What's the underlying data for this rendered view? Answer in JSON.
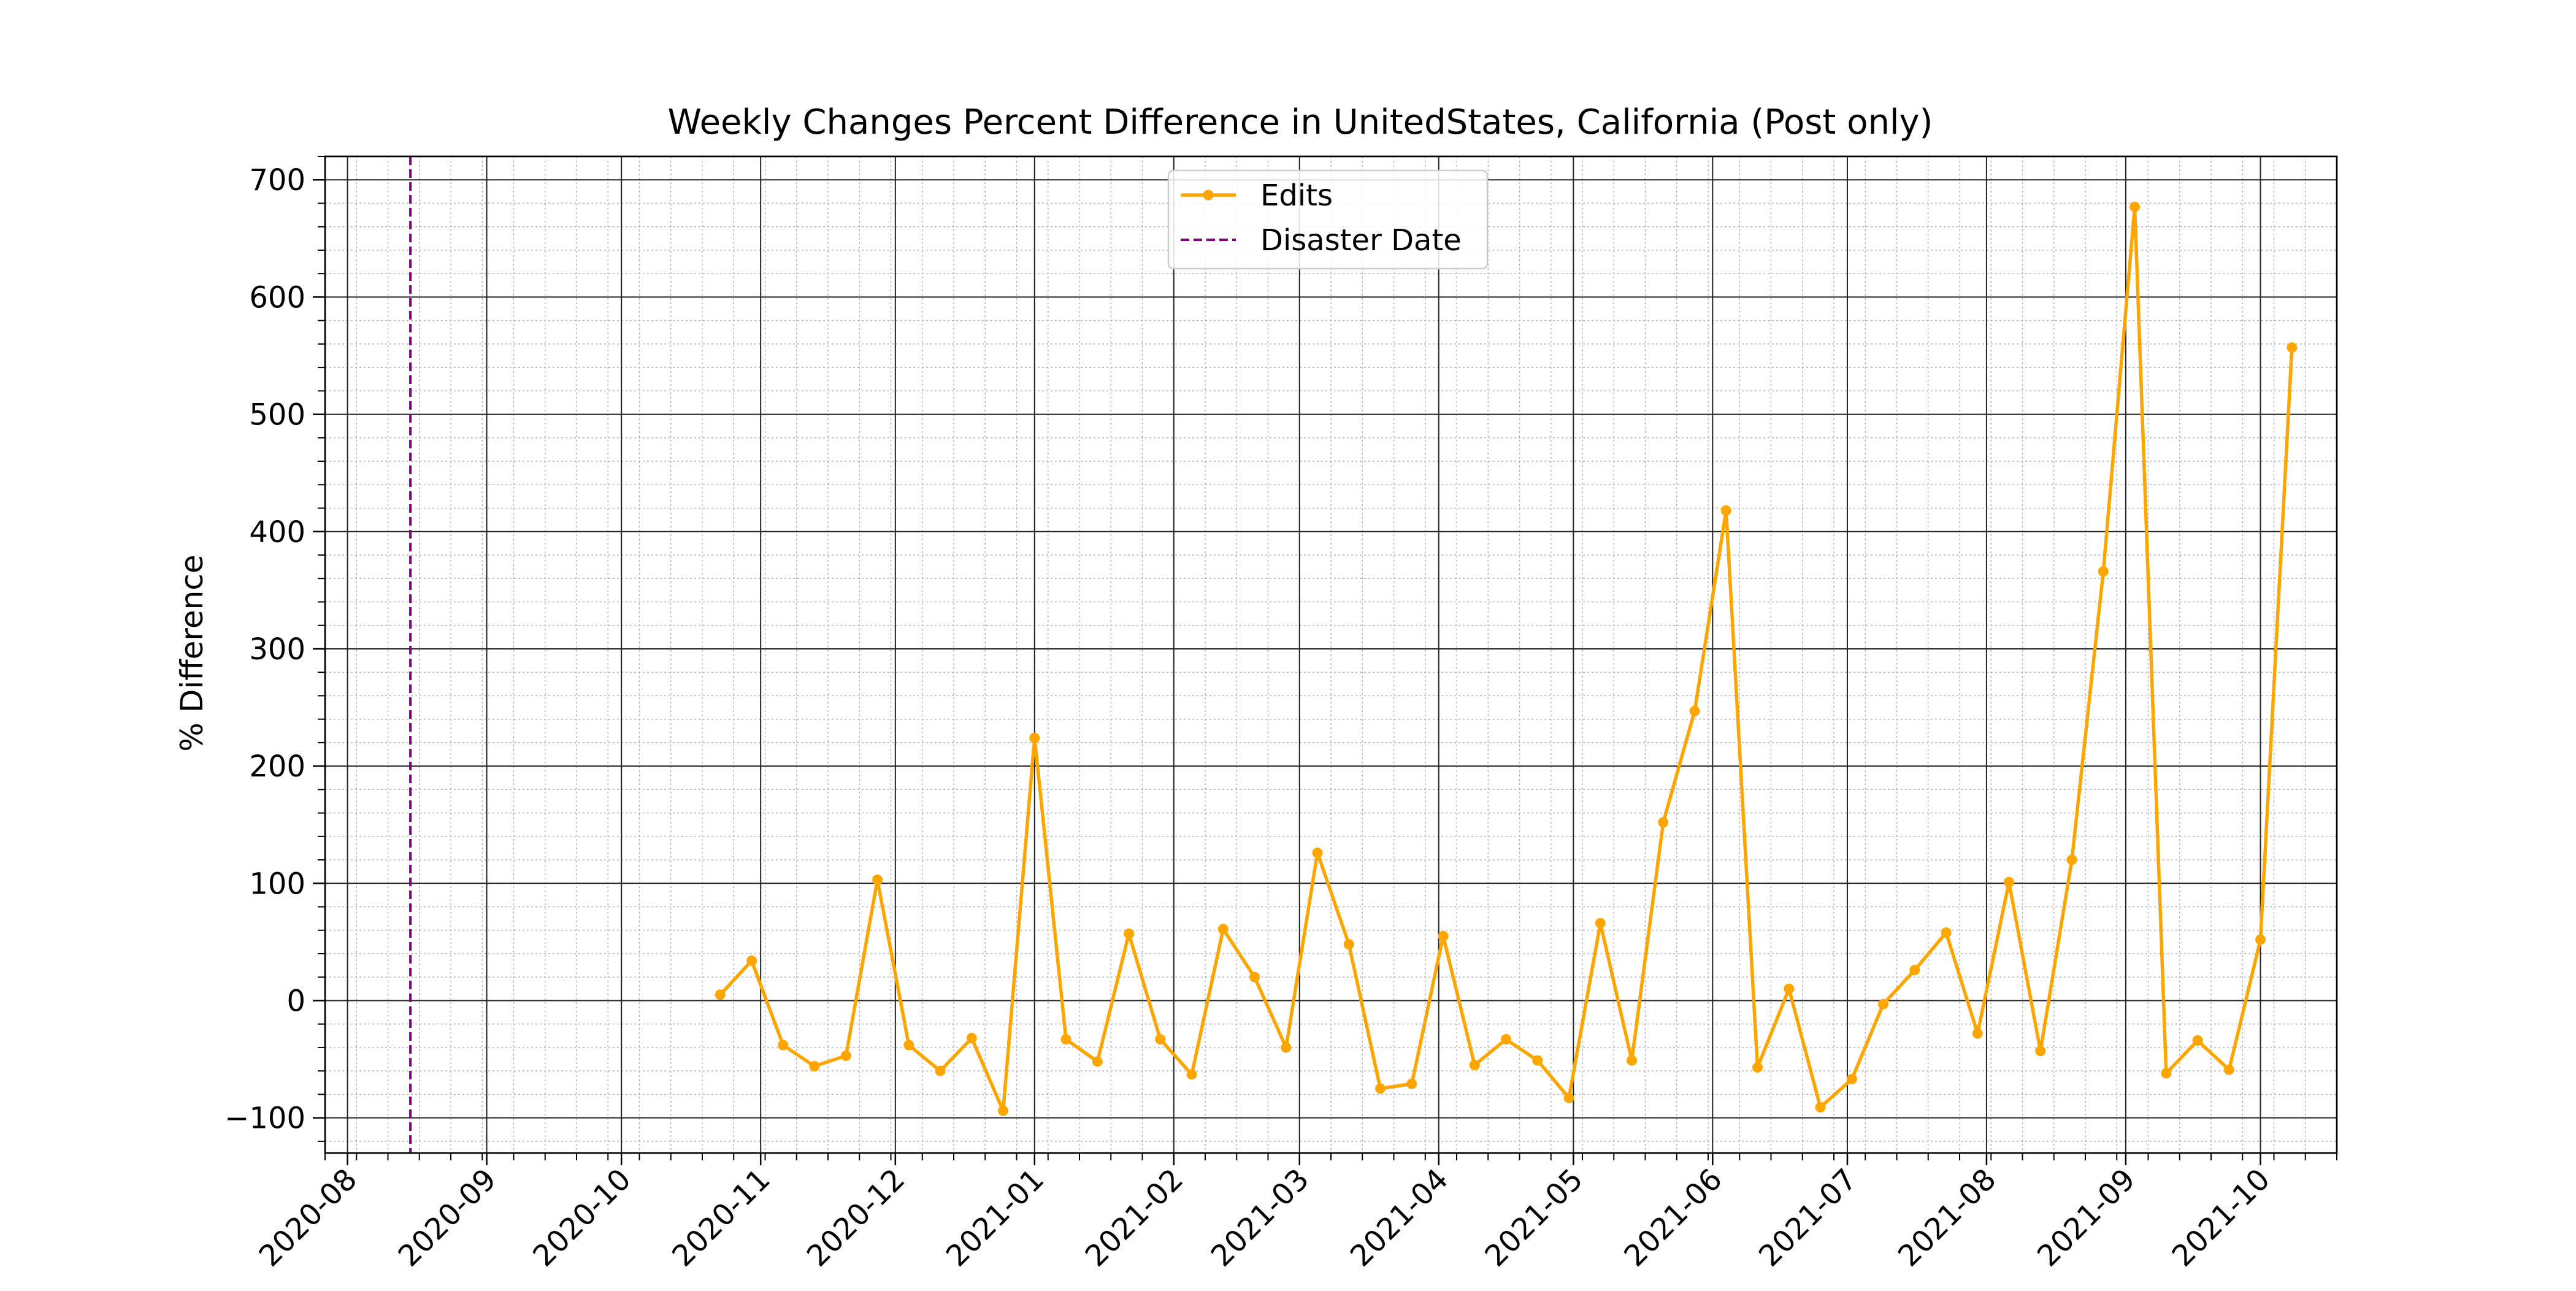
{
  "chart_data": {
    "type": "line",
    "title": "Weekly Changes Percent Difference in UnitedStates, California (Post only)",
    "xlabel": "",
    "ylabel": "% Difference",
    "x_type": "date",
    "xlim": [
      "2020-07-27",
      "2021-10-18"
    ],
    "ylim": [
      -130,
      720
    ],
    "grid": "major and minor",
    "legend_position": "top-center",
    "x_ticks": [
      {
        "date": "2020-08-01",
        "label": "2020-08"
      },
      {
        "date": "2020-09-01",
        "label": "2020-09"
      },
      {
        "date": "2020-10-01",
        "label": "2020-10"
      },
      {
        "date": "2020-11-01",
        "label": "2020-11"
      },
      {
        "date": "2020-12-01",
        "label": "2020-12"
      },
      {
        "date": "2021-01-01",
        "label": "2021-01"
      },
      {
        "date": "2021-02-01",
        "label": "2021-02"
      },
      {
        "date": "2021-03-01",
        "label": "2021-03"
      },
      {
        "date": "2021-04-01",
        "label": "2021-04"
      },
      {
        "date": "2021-05-01",
        "label": "2021-05"
      },
      {
        "date": "2021-06-01",
        "label": "2021-06"
      },
      {
        "date": "2021-07-01",
        "label": "2021-07"
      },
      {
        "date": "2021-08-01",
        "label": "2021-08"
      },
      {
        "date": "2021-09-01",
        "label": "2021-09"
      },
      {
        "date": "2021-10-01",
        "label": "2021-10"
      }
    ],
    "y_ticks": [
      {
        "value": -100,
        "label": "−100"
      },
      {
        "value": 0,
        "label": "0"
      },
      {
        "value": 100,
        "label": "100"
      },
      {
        "value": 200,
        "label": "200"
      },
      {
        "value": 300,
        "label": "300"
      },
      {
        "value": 400,
        "label": "400"
      },
      {
        "value": 500,
        "label": "500"
      },
      {
        "value": 600,
        "label": "600"
      },
      {
        "value": 700,
        "label": "700"
      }
    ],
    "series": [
      {
        "name": "Edits",
        "color": "#FFA500",
        "marker": "circle",
        "points": [
          {
            "x": "2020-10-23",
            "y": 5
          },
          {
            "x": "2020-10-30",
            "y": 34
          },
          {
            "x": "2020-11-06",
            "y": -38
          },
          {
            "x": "2020-11-13",
            "y": -56
          },
          {
            "x": "2020-11-20",
            "y": -47
          },
          {
            "x": "2020-11-27",
            "y": 103
          },
          {
            "x": "2020-12-04",
            "y": -38
          },
          {
            "x": "2020-12-11",
            "y": -60
          },
          {
            "x": "2020-12-18",
            "y": -32
          },
          {
            "x": "2020-12-25",
            "y": -94
          },
          {
            "x": "2021-01-01",
            "y": 224
          },
          {
            "x": "2021-01-08",
            "y": -33
          },
          {
            "x": "2021-01-15",
            "y": -52
          },
          {
            "x": "2021-01-22",
            "y": 57
          },
          {
            "x": "2021-01-29",
            "y": -33
          },
          {
            "x": "2021-02-05",
            "y": -63
          },
          {
            "x": "2021-02-12",
            "y": 61
          },
          {
            "x": "2021-02-19",
            "y": 20
          },
          {
            "x": "2021-02-26",
            "y": -40
          },
          {
            "x": "2021-03-05",
            "y": 126
          },
          {
            "x": "2021-03-12",
            "y": 48
          },
          {
            "x": "2021-03-19",
            "y": -75
          },
          {
            "x": "2021-03-26",
            "y": -71
          },
          {
            "x": "2021-04-02",
            "y": 55
          },
          {
            "x": "2021-04-09",
            "y": -55
          },
          {
            "x": "2021-04-16",
            "y": -33
          },
          {
            "x": "2021-04-23",
            "y": -51
          },
          {
            "x": "2021-04-30",
            "y": -83
          },
          {
            "x": "2021-05-07",
            "y": 66
          },
          {
            "x": "2021-05-14",
            "y": -51
          },
          {
            "x": "2021-05-21",
            "y": 152
          },
          {
            "x": "2021-05-28",
            "y": 247
          },
          {
            "x": "2021-06-04",
            "y": 418
          },
          {
            "x": "2021-06-11",
            "y": -57
          },
          {
            "x": "2021-06-18",
            "y": 10
          },
          {
            "x": "2021-06-25",
            "y": -91
          },
          {
            "x": "2021-07-02",
            "y": -67
          },
          {
            "x": "2021-07-09",
            "y": -3
          },
          {
            "x": "2021-07-16",
            "y": 26
          },
          {
            "x": "2021-07-23",
            "y": 58
          },
          {
            "x": "2021-07-30",
            "y": -28
          },
          {
            "x": "2021-08-06",
            "y": 101
          },
          {
            "x": "2021-08-13",
            "y": -43
          },
          {
            "x": "2021-08-20",
            "y": 120
          },
          {
            "x": "2021-08-27",
            "y": 366
          },
          {
            "x": "2021-09-03",
            "y": 677
          },
          {
            "x": "2021-09-10",
            "y": -62
          },
          {
            "x": "2021-09-17",
            "y": -34
          },
          {
            "x": "2021-09-24",
            "y": -59
          },
          {
            "x": "2021-10-01",
            "y": 52
          },
          {
            "x": "2021-10-08",
            "y": 557
          }
        ]
      }
    ],
    "vertical_lines": [
      {
        "name": "Disaster Date",
        "x": "2020-08-15",
        "color": "#800080",
        "style": "dashed"
      }
    ],
    "legend": [
      {
        "label": "Edits",
        "color": "#FFA500",
        "style": "line-marker"
      },
      {
        "label": "Disaster Date",
        "color": "#800080",
        "style": "dashed"
      }
    ]
  }
}
